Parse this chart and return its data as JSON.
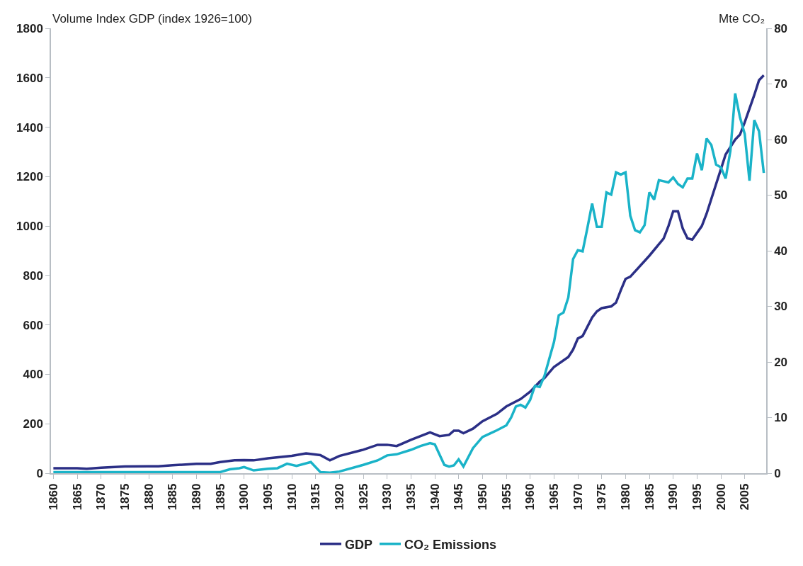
{
  "chart_data": {
    "type": "line",
    "ylabel": "Volume Index GDP (index 1926=100)",
    "y2label": "Mte CO₂",
    "xlim": [
      1859.5,
      2009.5
    ],
    "xticks": [
      1860,
      1865,
      1870,
      1875,
      1880,
      1885,
      1890,
      1895,
      1900,
      1905,
      1910,
      1915,
      1920,
      1925,
      1930,
      1935,
      1940,
      1945,
      1950,
      1955,
      1960,
      1965,
      1970,
      1975,
      1980,
      1985,
      1990,
      1995,
      2000,
      2005
    ],
    "ylim": [
      0,
      1800
    ],
    "yticks": [
      0,
      200,
      400,
      600,
      800,
      1000,
      1200,
      1400,
      1600,
      1800
    ],
    "y2lim": [
      0,
      80
    ],
    "y2ticks": [
      0,
      10,
      20,
      30,
      40,
      50,
      60,
      70,
      80
    ],
    "grid": false,
    "legend": "bottom",
    "marker": "none",
    "line_style": "solid",
    "series": [
      {
        "name": "GDP",
        "color": "#2b2f86",
        "x": [
          1860,
          1865,
          1867,
          1870,
          1875,
          1880,
          1882,
          1885,
          1890,
          1893,
          1895,
          1898,
          1900,
          1902,
          1905,
          1910,
          1913,
          1916,
          1918,
          1920,
          1925,
          1928,
          1930,
          1932,
          1935,
          1939,
          1941,
          1943,
          1944,
          1945,
          1946,
          1948,
          1950,
          1952,
          1953,
          1955,
          1958,
          1960,
          1962,
          1963,
          1965,
          1968,
          1969,
          1970,
          1971,
          1973,
          1974,
          1975,
          1977,
          1978,
          1979,
          1980,
          1981,
          1985,
          1988,
          1989,
          1990,
          1991,
          1992,
          1993,
          1994,
          1996,
          1997,
          1999,
          2001,
          2003,
          2004,
          2005,
          2007,
          2008,
          2009
        ],
        "values": [
          20,
          20,
          18,
          22,
          27,
          28,
          28,
          32,
          38,
          38,
          45,
          52,
          53,
          52,
          60,
          70,
          80,
          73,
          52,
          70,
          95,
          115,
          115,
          110,
          135,
          165,
          150,
          155,
          172,
          172,
          162,
          180,
          210,
          230,
          240,
          270,
          300,
          330,
          370,
          385,
          430,
          470,
          500,
          545,
          555,
          630,
          655,
          668,
          675,
          690,
          740,
          786,
          795,
          880,
          950,
          1000,
          1060,
          1060,
          990,
          950,
          945,
          1000,
          1050,
          1170,
          1290,
          1350,
          1370,
          1420,
          1530,
          1590,
          1610
        ]
      },
      {
        "name": "CO₂ Emissions",
        "color": "#1ab3c8",
        "axis": "y2",
        "x": [
          1860,
          1870,
          1880,
          1890,
          1895,
          1897,
          1899,
          1900,
          1902,
          1905,
          1907,
          1909,
          1911,
          1914,
          1916,
          1918,
          1920,
          1925,
          1928,
          1930,
          1932,
          1935,
          1937,
          1939,
          1940,
          1942,
          1943,
          1944,
          1945,
          1946,
          1948,
          1950,
          1952,
          1953,
          1955,
          1956,
          1957,
          1958,
          1959,
          1960,
          1961,
          1962,
          1963,
          1965,
          1966,
          1967,
          1968,
          1969,
          1970,
          1971,
          1972,
          1973,
          1974,
          1975,
          1976,
          1977,
          1978,
          1979,
          1980,
          1981,
          1982,
          1983,
          1984,
          1985,
          1986,
          1987,
          1988,
          1989,
          1990,
          1991,
          1992,
          1993,
          1994,
          1995,
          1996,
          1997,
          1998,
          1999,
          2000,
          2001,
          2002,
          2003,
          2004,
          2005,
          2006,
          2007,
          2008,
          2009
        ],
        "values": [
          0.2,
          0.2,
          0.2,
          0.2,
          0.2,
          0.7,
          0.9,
          1.1,
          0.5,
          0.8,
          0.9,
          1.7,
          1.3,
          2.0,
          0.2,
          0.1,
          0.3,
          1.5,
          2.3,
          3.2,
          3.4,
          4.2,
          4.9,
          5.4,
          5.2,
          1.5,
          1.2,
          1.4,
          2.5,
          1.2,
          4.5,
          6.5,
          7.3,
          7.7,
          8.6,
          10.0,
          12.0,
          12.3,
          11.8,
          13.2,
          15.7,
          15.5,
          17.5,
          23.6,
          28.4,
          28.9,
          31.6,
          38.5,
          40.1,
          39.9,
          44.1,
          48.5,
          44.3,
          44.3,
          50.5,
          50.1,
          54.1,
          53.7,
          54.1,
          46.3,
          43.7,
          43.3,
          44.6,
          50.5,
          49.2,
          52.7,
          52.5,
          52.3,
          53.2,
          52.0,
          51.4,
          53.0,
          53.0,
          57.5,
          54.5,
          60.2,
          59.0,
          55.5,
          55.0,
          53.0,
          58.0,
          68.3,
          64.0,
          61.0,
          52.6,
          63.5,
          61.5,
          54.0
        ]
      }
    ]
  }
}
